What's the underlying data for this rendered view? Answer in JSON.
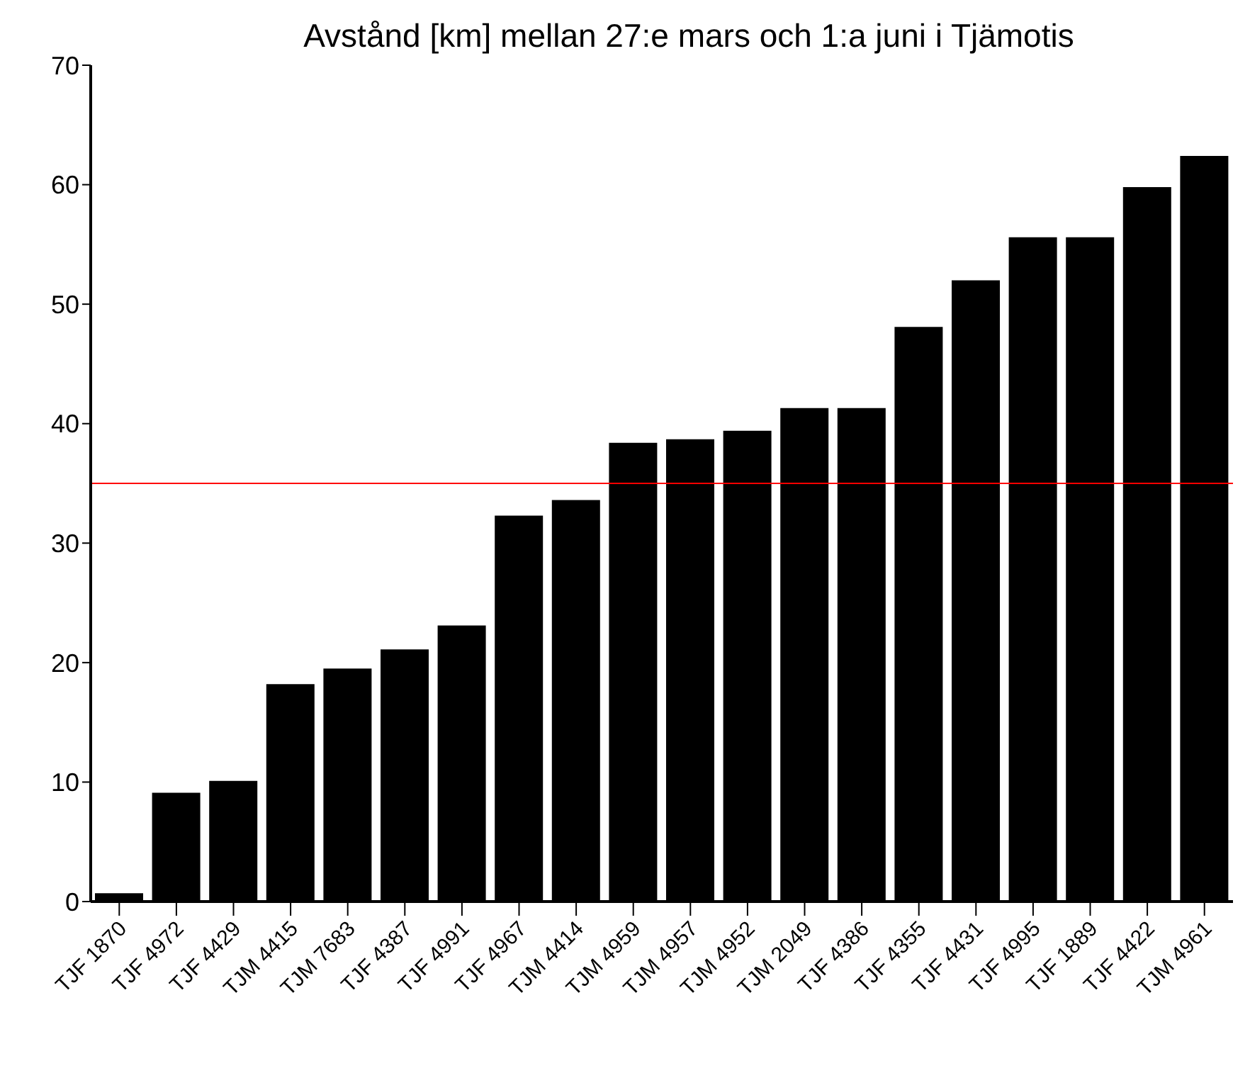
{
  "chart_data": {
    "type": "bar",
    "title": "Avstånd [km] mellan 27:e mars och 1:a juni i Tjämotis",
    "categories": [
      "TJF 1870",
      "TJF 4972",
      "TJF 4429",
      "TJM 4415",
      "TJM 7683",
      "TJF 4387",
      "TJF 4991",
      "TJF 4967",
      "TJM 4414",
      "TJM 4959",
      "TJM 4957",
      "TJM 4952",
      "TJM 2049",
      "TJF 4386",
      "TJF 4355",
      "TJF 4431",
      "TJF 4995",
      "TJF 1889",
      "TJF 4422",
      "TJM 4961"
    ],
    "values": [
      0.7,
      9.1,
      10.1,
      18.2,
      19.5,
      21.1,
      23.1,
      32.3,
      33.6,
      38.4,
      38.7,
      39.4,
      41.3,
      41.3,
      48.1,
      52.0,
      55.6,
      55.6,
      59.8,
      62.4
    ],
    "color": "#000000",
    "ylim": [
      0,
      70
    ],
    "yticks": [
      0,
      10,
      20,
      30,
      40,
      50,
      60,
      70
    ],
    "grid": false,
    "ref_lines": [
      {
        "axis": "y",
        "value": 35,
        "color": "#ff0000"
      }
    ]
  }
}
